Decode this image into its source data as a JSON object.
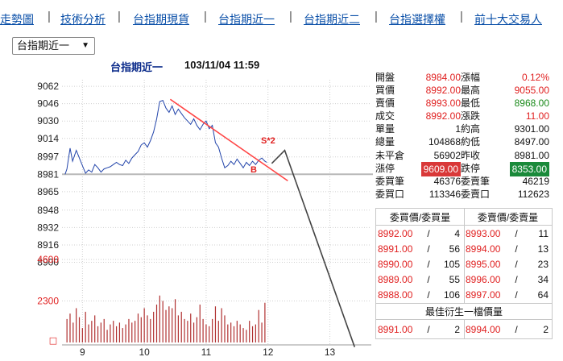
{
  "nav": {
    "items": [
      "走勢圖",
      "技術分析",
      "台指期現貨",
      "台指期近一",
      "台指期近二",
      "台指選擇權",
      "前十大交易人"
    ],
    "separator": "|"
  },
  "contract_select": {
    "selected": "台指期近一",
    "caret": "▼"
  },
  "chart": {
    "title": "台指期近一",
    "timestamp": "103/11/04 11:59",
    "price_ticks": [
      "9062",
      "9046",
      "9030",
      "9014",
      "8997",
      "8981",
      "8965",
      "8948",
      "8932",
      "8916",
      "8900"
    ],
    "volume_ticks": [
      "4600",
      "2300"
    ],
    "volume_marker": "□",
    "time_ticks": [
      "9",
      "10",
      "11",
      "12",
      "13"
    ],
    "reference_price": 8981,
    "annotation_s": "S*2",
    "annotation_b": "B",
    "colors": {
      "price_line": "#2244aa",
      "reference_line": "#b8b8b8",
      "trend_line": "#ff4444",
      "projection_line": "#444444",
      "volume_bar": "#b03030",
      "grid": "#cfcfcf",
      "red": "#e02020",
      "green": "#1a8a1a"
    }
  },
  "chart_data": {
    "type": "line",
    "title": "台指期近一",
    "subtitle": "103/11/04 11:59",
    "xlabel": "",
    "ylabel": "",
    "x_range": [
      8.67,
      13.67
    ],
    "ylim": [
      8890,
      9068
    ],
    "grid": true,
    "reference_line": 8981,
    "series": [
      {
        "x": [
          8.72,
          8.75,
          8.8,
          8.84,
          8.9,
          8.95,
          9.0,
          9.05,
          9.1,
          9.15,
          9.2,
          9.25,
          9.3,
          9.35,
          9.4,
          9.45,
          9.5,
          9.55,
          9.6,
          9.65,
          9.7,
          9.75,
          9.8,
          9.85,
          9.9,
          9.95,
          10.0,
          10.05,
          10.1,
          10.15,
          10.2,
          10.25,
          10.3,
          10.35,
          10.4,
          10.45,
          10.5,
          10.55,
          10.6,
          10.65,
          10.7,
          10.75,
          10.8,
          10.85,
          10.9,
          10.95,
          11.0,
          11.05,
          11.1,
          11.15,
          11.2,
          11.25,
          11.3,
          11.35,
          11.4,
          11.45,
          11.5,
          11.55,
          11.6,
          11.65,
          11.7,
          11.75,
          11.8,
          11.85,
          11.9,
          11.95,
          11.98
        ],
        "values": [
          8981,
          8986,
          9005,
          8993,
          9003,
          8996,
          8989,
          8982,
          8985,
          8983,
          8990,
          8987,
          8983,
          8986,
          8987,
          8988,
          8990,
          8992,
          8990,
          8989,
          8994,
          8991,
          8996,
          8999,
          9002,
          9008,
          9010,
          9006,
          9012,
          9020,
          9032,
          9048,
          9049,
          9042,
          9038,
          9044,
          9036,
          9041,
          9037,
          9033,
          9030,
          9027,
          9032,
          9026,
          9022,
          9027,
          9030,
          9023,
          9026,
          9010,
          9006,
          8996,
          8987,
          8989,
          8993,
          8990,
          8995,
          8991,
          8987,
          8992,
          8989,
          8993,
          8990,
          8994,
          8996,
          8993,
          8992
        ]
      }
    ],
    "trend_line": [
      [
        10.42,
        9050
      ],
      [
        12.32,
        8975
      ]
    ],
    "projection": [
      [
        12.06,
        8991
      ],
      [
        12.27,
        9003
      ],
      [
        13.4,
        8822
      ]
    ],
    "volume": {
      "ticks": [
        2300,
        4600
      ],
      "x": [
        8.75,
        8.8,
        8.85,
        8.9,
        8.95,
        9.0,
        9.05,
        9.1,
        9.15,
        9.2,
        9.25,
        9.3,
        9.35,
        9.4,
        9.45,
        9.5,
        9.55,
        9.6,
        9.65,
        9.7,
        9.75,
        9.8,
        9.85,
        9.9,
        9.95,
        10.0,
        10.05,
        10.1,
        10.15,
        10.2,
        10.25,
        10.3,
        10.35,
        10.4,
        10.45,
        10.5,
        10.55,
        10.6,
        10.65,
        10.7,
        10.75,
        10.8,
        10.85,
        10.9,
        10.95,
        11.0,
        11.05,
        11.1,
        11.15,
        11.2,
        11.25,
        11.3,
        11.35,
        11.4,
        11.45,
        11.5,
        11.55,
        11.6,
        11.65,
        11.7,
        11.75,
        11.8,
        11.85,
        11.9,
        11.95
      ],
      "values": [
        1300,
        1600,
        1100,
        1900,
        1400,
        800,
        1700,
        1000,
        1200,
        1500,
        900,
        1100,
        1300,
        700,
        1000,
        1200,
        900,
        1100,
        800,
        1000,
        1300,
        1100,
        1200,
        1600,
        1400,
        1900,
        1500,
        1300,
        1700,
        2100,
        2600,
        2300,
        1800,
        2000,
        1900,
        2400,
        1500,
        1700,
        1300,
        1200,
        1600,
        1100,
        1400,
        2100,
        1300,
        1000,
        900,
        1300,
        2000,
        1200,
        1900,
        1500,
        1000,
        1100,
        900,
        1200,
        1000,
        800,
        700,
        1200,
        900,
        1000,
        1800,
        1100,
        2200
      ]
    }
  },
  "quote": {
    "rows": [
      {
        "l1": "開盤",
        "v1": "8984.00",
        "c1": "red",
        "l2": "漲幅",
        "v2": "0.12%",
        "c2": "red"
      },
      {
        "l1": "買價",
        "v1": "8992.00",
        "c1": "red",
        "l2": "最高",
        "v2": "9055.00",
        "c2": "red"
      },
      {
        "l1": "賣價",
        "v1": "8993.00",
        "c1": "red",
        "l2": "最低",
        "v2": "8968.00",
        "c2": "green"
      },
      {
        "l1": "成交",
        "v1": "8992.00",
        "c1": "red",
        "l2": "漲跌",
        "v2": "11.00",
        "c2": "red"
      },
      {
        "l1": "單量",
        "v1": "1",
        "c1": "black",
        "l2": "約高",
        "v2": "9301.00",
        "c2": "black"
      },
      {
        "l1": "總量",
        "v1": "104868",
        "c1": "black",
        "l2": "約低",
        "v2": "8497.00",
        "c2": "black"
      },
      {
        "l1": "未平倉",
        "v1": "56902",
        "c1": "black",
        "l2": "昨收",
        "v2": "8981.00",
        "c2": "black"
      },
      {
        "l1": "漲停",
        "v1": "9609.00",
        "c1": "box-red",
        "l2": "跌停",
        "v2": "8353.00",
        "c2": "box-green"
      },
      {
        "l1": "委買筆",
        "v1": "46376",
        "c1": "black",
        "l2": "委賣筆",
        "v2": "46219",
        "c2": "black"
      },
      {
        "l1": "委買口",
        "v1": "113346",
        "c1": "black",
        "l2": "委賣口",
        "v2": "112623",
        "c2": "black"
      }
    ]
  },
  "order_book": {
    "bid_header": "委買價/委買量",
    "ask_header": "委賣價/委賣量",
    "slash": "/",
    "levels": [
      {
        "bid_price": "8992.00",
        "bid_qty": "4",
        "ask_price": "8993.00",
        "ask_qty": "11"
      },
      {
        "bid_price": "8991.00",
        "bid_qty": "56",
        "ask_price": "8994.00",
        "ask_qty": "13"
      },
      {
        "bid_price": "8990.00",
        "bid_qty": "105",
        "ask_price": "8995.00",
        "ask_qty": "23"
      },
      {
        "bid_price": "8989.00",
        "bid_qty": "55",
        "ask_price": "8996.00",
        "ask_qty": "34"
      },
      {
        "bid_price": "8988.00",
        "bid_qty": "106",
        "ask_price": "8997.00",
        "ask_qty": "64"
      }
    ],
    "derivative_header": "最佳衍生一檔價量",
    "derivative": {
      "bid_price": "8991.00",
      "bid_qty": "2",
      "ask_price": "8994.00",
      "ask_qty": "2"
    }
  }
}
